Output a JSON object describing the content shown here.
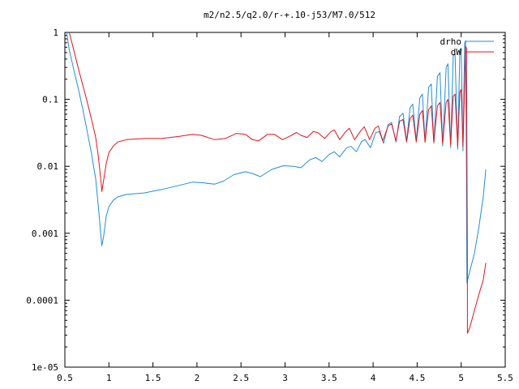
{
  "chart_data": {
    "type": "line",
    "title": "m2/n2.5/q2.0/r-+.10-j53/M7.0/512",
    "xlabel": "",
    "ylabel": "",
    "xlim": [
      0.5,
      5.5
    ],
    "ylim": [
      1e-05,
      1
    ],
    "yscale": "log",
    "grid": false,
    "legend_position": "top-right",
    "x_ticks": [
      {
        "v": 0.5,
        "label": "0.5"
      },
      {
        "v": 1,
        "label": "1"
      },
      {
        "v": 1.5,
        "label": "1.5"
      },
      {
        "v": 2,
        "label": "2"
      },
      {
        "v": 2.5,
        "label": "2.5"
      },
      {
        "v": 3,
        "label": "3"
      },
      {
        "v": 3.5,
        "label": "3.5"
      },
      {
        "v": 4,
        "label": "4"
      },
      {
        "v": 4.5,
        "label": "4.5"
      },
      {
        "v": 5,
        "label": "5"
      },
      {
        "v": 5.5,
        "label": "5.5"
      }
    ],
    "y_ticks": [
      {
        "v": 1,
        "label": "1"
      },
      {
        "v": 0.1,
        "label": "0.1"
      },
      {
        "v": 0.01,
        "label": "0.01"
      },
      {
        "v": 0.001,
        "label": "0.001"
      },
      {
        "v": 0.0001,
        "label": "0.0001"
      },
      {
        "v": 1e-05,
        "label": "1e-05"
      }
    ],
    "series": [
      {
        "name": "drho",
        "color": "#1f8fd6",
        "points": [
          [
            0.52,
            1.0
          ],
          [
            0.55,
            0.55
          ],
          [
            0.6,
            0.28
          ],
          [
            0.65,
            0.15
          ],
          [
            0.7,
            0.075
          ],
          [
            0.75,
            0.035
          ],
          [
            0.8,
            0.016
          ],
          [
            0.85,
            0.0065
          ],
          [
            0.88,
            0.0025
          ],
          [
            0.91,
            0.0009
          ],
          [
            0.92,
            0.00065
          ],
          [
            0.94,
            0.0009
          ],
          [
            0.97,
            0.0018
          ],
          [
            1.0,
            0.0025
          ],
          [
            1.05,
            0.0031
          ],
          [
            1.1,
            0.0035
          ],
          [
            1.2,
            0.0038
          ],
          [
            1.4,
            0.004
          ],
          [
            1.6,
            0.0045
          ],
          [
            1.8,
            0.0052
          ],
          [
            1.95,
            0.0058
          ],
          [
            2.05,
            0.0057
          ],
          [
            2.2,
            0.0054
          ],
          [
            2.3,
            0.006
          ],
          [
            2.42,
            0.0075
          ],
          [
            2.55,
            0.0083
          ],
          [
            2.63,
            0.0078
          ],
          [
            2.72,
            0.007
          ],
          [
            2.85,
            0.009
          ],
          [
            2.98,
            0.0102
          ],
          [
            3.1,
            0.01
          ],
          [
            3.18,
            0.0095
          ],
          [
            3.28,
            0.0125
          ],
          [
            3.35,
            0.0135
          ],
          [
            3.42,
            0.0118
          ],
          [
            3.5,
            0.015
          ],
          [
            3.56,
            0.0165
          ],
          [
            3.62,
            0.0138
          ],
          [
            3.7,
            0.019
          ],
          [
            3.75,
            0.0198
          ],
          [
            3.81,
            0.0165
          ],
          [
            3.87,
            0.0235
          ],
          [
            3.91,
            0.025
          ],
          [
            3.97,
            0.019
          ],
          [
            4.03,
            0.032
          ],
          [
            4.07,
            0.033
          ],
          [
            4.12,
            0.022
          ],
          [
            4.17,
            0.042
          ],
          [
            4.21,
            0.045
          ],
          [
            4.26,
            0.023
          ],
          [
            4.3,
            0.055
          ],
          [
            4.34,
            0.062
          ],
          [
            4.38,
            0.024
          ],
          [
            4.42,
            0.075
          ],
          [
            4.45,
            0.085
          ],
          [
            4.49,
            0.024
          ],
          [
            4.53,
            0.105
          ],
          [
            4.56,
            0.12
          ],
          [
            4.59,
            0.023
          ],
          [
            4.63,
            0.15
          ],
          [
            4.66,
            0.17
          ],
          [
            4.69,
            0.022
          ],
          [
            4.73,
            0.22
          ],
          [
            4.76,
            0.25
          ],
          [
            4.79,
            0.02
          ],
          [
            4.83,
            0.3
          ],
          [
            4.85,
            0.34
          ],
          [
            4.88,
            0.019
          ],
          [
            4.91,
            0.45
          ],
          [
            4.93,
            0.48
          ],
          [
            4.96,
            0.018
          ],
          [
            4.985,
            0.55
          ],
          [
            5.0,
            0.58
          ],
          [
            5.02,
            0.017
          ],
          [
            5.04,
            0.7
          ],
          [
            5.05,
            0.75
          ],
          [
            5.06,
            0.011
          ],
          [
            5.061,
            0.0025
          ],
          [
            5.065,
            0.00018
          ],
          [
            5.1,
            0.00028
          ],
          [
            5.15,
            0.0005
          ],
          [
            5.2,
            0.0012
          ],
          [
            5.25,
            0.0035
          ],
          [
            5.28,
            0.009
          ]
        ]
      },
      {
        "name": "dW",
        "color": "#e0141e",
        "points": [
          [
            0.55,
            1.0
          ],
          [
            0.6,
            0.55
          ],
          [
            0.65,
            0.3
          ],
          [
            0.7,
            0.17
          ],
          [
            0.75,
            0.095
          ],
          [
            0.8,
            0.052
          ],
          [
            0.85,
            0.027
          ],
          [
            0.88,
            0.014
          ],
          [
            0.91,
            0.006
          ],
          [
            0.92,
            0.0042
          ],
          [
            0.94,
            0.0062
          ],
          [
            0.97,
            0.011
          ],
          [
            1.0,
            0.016
          ],
          [
            1.05,
            0.02
          ],
          [
            1.1,
            0.023
          ],
          [
            1.2,
            0.025
          ],
          [
            1.4,
            0.026
          ],
          [
            1.6,
            0.026
          ],
          [
            1.8,
            0.028
          ],
          [
            1.95,
            0.03
          ],
          [
            2.05,
            0.029
          ],
          [
            2.2,
            0.025
          ],
          [
            2.32,
            0.026
          ],
          [
            2.45,
            0.031
          ],
          [
            2.55,
            0.03
          ],
          [
            2.63,
            0.025
          ],
          [
            2.7,
            0.024
          ],
          [
            2.8,
            0.03
          ],
          [
            2.88,
            0.03
          ],
          [
            2.97,
            0.025
          ],
          [
            3.05,
            0.028
          ],
          [
            3.13,
            0.032
          ],
          [
            3.18,
            0.029
          ],
          [
            3.25,
            0.027
          ],
          [
            3.32,
            0.033
          ],
          [
            3.37,
            0.032
          ],
          [
            3.45,
            0.026
          ],
          [
            3.52,
            0.033
          ],
          [
            3.56,
            0.035
          ],
          [
            3.62,
            0.025
          ],
          [
            3.69,
            0.033
          ],
          [
            3.73,
            0.037
          ],
          [
            3.79,
            0.025
          ],
          [
            3.86,
            0.034
          ],
          [
            3.9,
            0.039
          ],
          [
            3.96,
            0.025
          ],
          [
            4.02,
            0.037
          ],
          [
            4.06,
            0.04
          ],
          [
            4.11,
            0.024
          ],
          [
            4.17,
            0.04
          ],
          [
            4.21,
            0.043
          ],
          [
            4.26,
            0.024
          ],
          [
            4.3,
            0.047
          ],
          [
            4.34,
            0.05
          ],
          [
            4.38,
            0.023
          ],
          [
            4.42,
            0.052
          ],
          [
            4.45,
            0.058
          ],
          [
            4.49,
            0.023
          ],
          [
            4.53,
            0.06
          ],
          [
            4.56,
            0.068
          ],
          [
            4.59,
            0.023
          ],
          [
            4.63,
            0.07
          ],
          [
            4.66,
            0.08
          ],
          [
            4.69,
            0.023
          ],
          [
            4.73,
            0.08
          ],
          [
            4.76,
            0.09
          ],
          [
            4.79,
            0.022
          ],
          [
            4.83,
            0.09
          ],
          [
            4.85,
            0.1
          ],
          [
            4.88,
            0.021
          ],
          [
            4.91,
            0.11
          ],
          [
            4.93,
            0.12
          ],
          [
            4.96,
            0.02
          ],
          [
            4.985,
            0.13
          ],
          [
            5.0,
            0.14
          ],
          [
            5.02,
            0.02
          ],
          [
            5.04,
            0.16
          ],
          [
            5.05,
            0.62
          ],
          [
            5.06,
            0.58
          ],
          [
            5.07,
            0.0006
          ],
          [
            5.071,
            3.2e-05
          ],
          [
            5.1,
            4e-05
          ],
          [
            5.15,
            7e-05
          ],
          [
            5.2,
            0.00012
          ],
          [
            5.25,
            0.0002
          ],
          [
            5.28,
            0.00036
          ]
        ]
      }
    ]
  }
}
